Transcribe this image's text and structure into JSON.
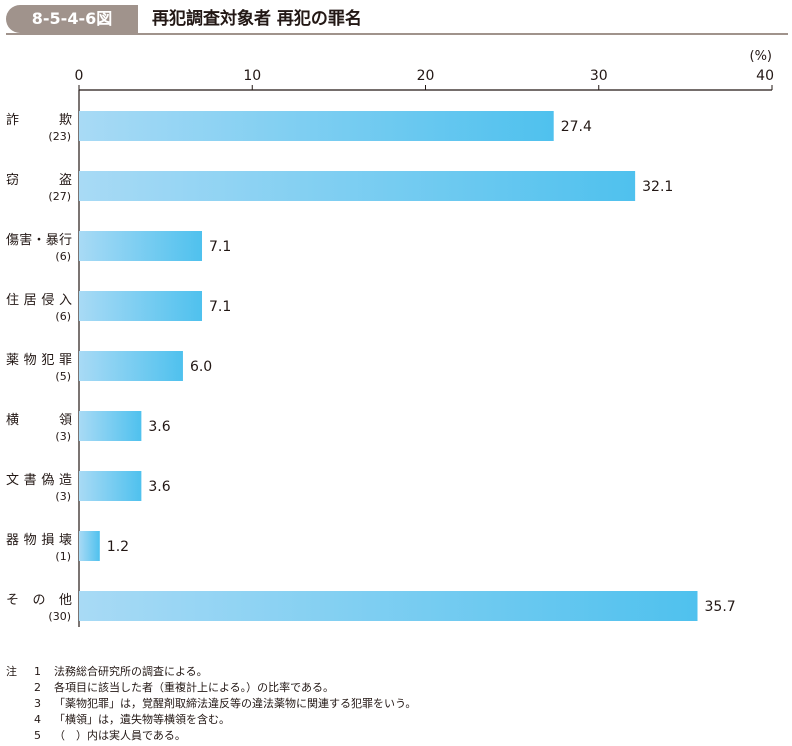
{
  "figure": {
    "number": "8-5-4-6図",
    "title": "再犯調査対象者 再犯の罪名"
  },
  "chart_data": {
    "type": "bar",
    "orientation": "horizontal",
    "title": "再犯調査対象者 再犯の罪名",
    "unit": "(%)",
    "xlim": [
      0,
      40
    ],
    "ticks": [
      0,
      10,
      20,
      30,
      40
    ],
    "grid": false,
    "legend": "none",
    "categories": [
      {
        "label": "詐　　欺",
        "count": "(23)",
        "value": 27.4
      },
      {
        "label": "窃　　盗",
        "count": "(27)",
        "value": 32.1
      },
      {
        "label": "傷害・暴行",
        "count": "(6)",
        "value": 7.1
      },
      {
        "label": "住居侵入",
        "count": "(6)",
        "value": 7.1
      },
      {
        "label": "薬物犯罪",
        "count": "(5)",
        "value": 6.0
      },
      {
        "label": "横　　領",
        "count": "(3)",
        "value": 3.6
      },
      {
        "label": "文書偽造",
        "count": "(3)",
        "value": 3.6
      },
      {
        "label": "器物損壊",
        "count": "(1)",
        "value": 1.2
      },
      {
        "label": "そ の 他",
        "count": "(30)",
        "value": 35.7
      }
    ],
    "colors": {
      "bar_start": "#a8daf5",
      "bar_end": "#4fc1ee",
      "axis": "#231815"
    }
  },
  "notes": {
    "head": "注",
    "items": [
      {
        "num": "1",
        "text": "法務総合研究所の調査による。"
      },
      {
        "num": "2",
        "text": "各項目に該当した者（重複計上による。）の比率である。"
      },
      {
        "num": "3",
        "text": "「薬物犯罪」は，覚醒剤取締法違反等の違法薬物に関連する犯罪をいう。"
      },
      {
        "num": "4",
        "text": "「横領」は，遺失物等横領を含む。"
      },
      {
        "num": "5",
        "text": "（　）内は実人員である。"
      }
    ]
  }
}
